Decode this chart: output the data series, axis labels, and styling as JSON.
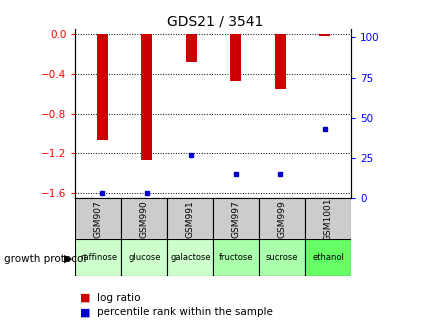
{
  "title": "GDS21 / 3541",
  "samples": [
    "GSM907",
    "GSM990",
    "GSM991",
    "GSM997",
    "GSM999",
    "GSM1001"
  ],
  "protocols": [
    "raffinose",
    "glucose",
    "galactose",
    "fructose",
    "sucrose",
    "ethanol"
  ],
  "log_ratios": [
    -1.07,
    -1.27,
    -0.28,
    -0.47,
    -0.55,
    -0.02
  ],
  "percentile_ranks": [
    3,
    3,
    27,
    15,
    15,
    43
  ],
  "ylim_left": [
    -1.65,
    0.05
  ],
  "ylim_right": [
    0,
    105
  ],
  "yticks_left": [
    0,
    -0.4,
    -0.8,
    -1.2,
    -1.6
  ],
  "yticks_right": [
    0,
    25,
    50,
    75,
    100
  ],
  "bar_color": "#cc0000",
  "dot_color": "#0000cc",
  "bar_width": 0.25,
  "bg_color": "#ffffff",
  "sample_bg": "#cccccc",
  "protocol_bg_colors": [
    "#ccffcc",
    "#ccffcc",
    "#ccffcc",
    "#aaffaa",
    "#aaffaa",
    "#66ff66"
  ],
  "legend_log_ratio": "log ratio",
  "legend_percentile": "percentile rank within the sample",
  "growth_protocol_label": "growth protocol",
  "title_fontsize": 10,
  "axis_fontsize": 7.5,
  "label_fontsize": 7
}
